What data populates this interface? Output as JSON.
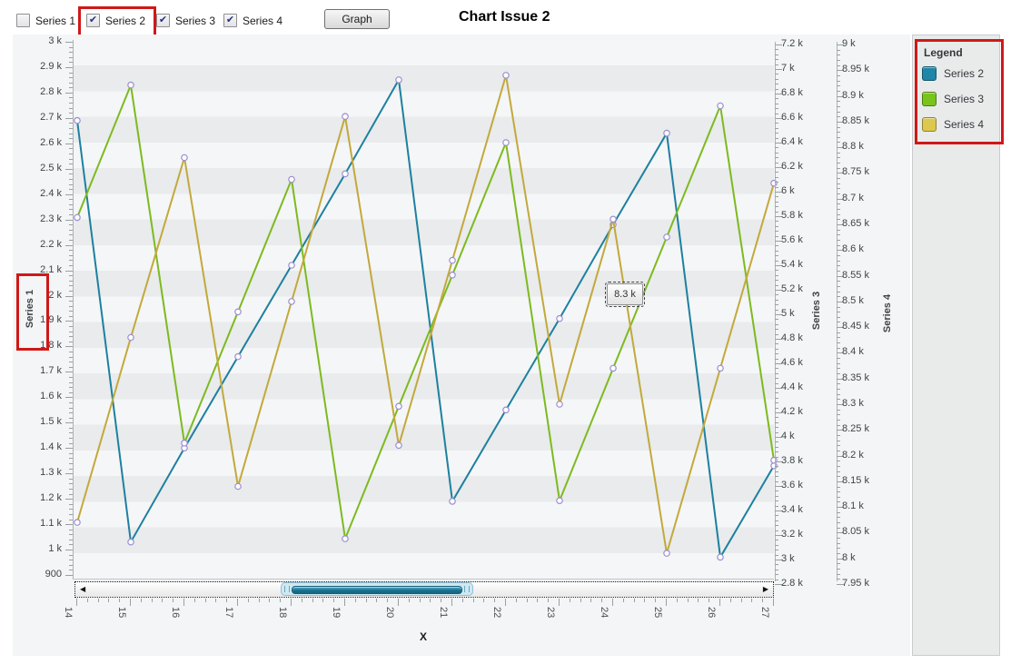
{
  "toolbar": {
    "series_toggles": [
      {
        "label": "Series 1",
        "checked": false,
        "highlighted": false
      },
      {
        "label": "Series 2",
        "checked": true,
        "highlighted": true
      },
      {
        "label": "Series 3",
        "checked": true,
        "highlighted": false
      },
      {
        "label": "Series 4",
        "checked": true,
        "highlighted": false
      }
    ],
    "graph_button": "Graph",
    "title": "Chart Issue 2"
  },
  "legend": {
    "title": "Legend",
    "highlighted": true,
    "items": [
      {
        "label": "Series 2",
        "color": "#1f86a8"
      },
      {
        "label": "Series 3",
        "color": "#79c41c"
      },
      {
        "label": "Series 4",
        "color": "#dcc84e"
      }
    ]
  },
  "tooltip": {
    "text": "8.3 k"
  },
  "scrollbar": {
    "visible_range_labels": [
      "18",
      "21"
    ]
  },
  "chart_data": {
    "type": "line",
    "x": [
      14,
      15,
      16,
      17,
      18,
      19,
      20,
      21,
      22,
      23,
      24,
      25,
      26,
      27
    ],
    "series": [
      {
        "name": "Series 2",
        "axis": "left",
        "color": "#1d80a0",
        "values_k": [
          2.69,
          1.03,
          1.4,
          1.76,
          2.12,
          2.48,
          2.85,
          1.19,
          1.55,
          1.91,
          2.28,
          2.64,
          0.97,
          1.33
        ]
      },
      {
        "name": "Series 3",
        "axis": "right1",
        "color": "#7dba1f",
        "values_k": [
          5.79,
          6.87,
          3.95,
          5.02,
          6.1,
          3.17,
          4.25,
          5.32,
          6.4,
          3.48,
          4.56,
          5.63,
          6.7,
          3.81
        ]
      },
      {
        "name": "Series 4",
        "axis": "right2",
        "color": "#c2a93c",
        "values_k": [
          8.07,
          8.43,
          8.78,
          8.14,
          8.5,
          8.86,
          8.22,
          8.58,
          8.94,
          8.3,
          8.66,
          8.01,
          8.37,
          8.73
        ]
      }
    ],
    "axes": {
      "left": {
        "title": "Series 1",
        "min_k": 0.9,
        "max_k": 3.0,
        "tick_labels": [
          "3 k",
          "2.9 k",
          "2.8 k",
          "2.7 k",
          "2.6 k",
          "2.5 k",
          "2.4 k",
          "2.3 k",
          "2.2 k",
          "2.1 k",
          "2 k",
          "1.9 k",
          "1.8 k",
          "1.7 k",
          "1.6 k",
          "1.5 k",
          "1.4 k",
          "1.3 k",
          "1.2 k",
          "1.1 k",
          "1 k",
          "900"
        ]
      },
      "right1": {
        "title": "Series 3",
        "min_k": 2.8,
        "max_k": 7.2,
        "tick_labels": [
          "7.2 k",
          "7 k",
          "6.8 k",
          "6.6 k",
          "6.4 k",
          "6.2 k",
          "6 k",
          "5.8 k",
          "5.6 k",
          "5.4 k",
          "5.2 k",
          "5 k",
          "4.8 k",
          "4.6 k",
          "4.4 k",
          "4.2 k",
          "4 k",
          "3.8 k",
          "3.6 k",
          "3.4 k",
          "3.2 k",
          "3 k",
          "2.8 k"
        ]
      },
      "right2": {
        "title": "Series 4",
        "min_k": 7.95,
        "max_k": 9.0,
        "tick_labels": [
          "9 k",
          "8.95 k",
          "8.9 k",
          "8.85 k",
          "8.8 k",
          "8.75 k",
          "8.7 k",
          "8.65 k",
          "8.6 k",
          "8.55 k",
          "8.5 k",
          "8.45 k",
          "8.4 k",
          "8.35 k",
          "8.3 k",
          "8.25 k",
          "8.2 k",
          "8.15 k",
          "8.1 k",
          "8.05 k",
          "8 k",
          "7.95 k"
        ]
      },
      "x": {
        "title": "X",
        "tick_labels": [
          "14",
          "15",
          "16",
          "17",
          "18",
          "19",
          "20",
          "21",
          "22",
          "23",
          "24",
          "25",
          "26",
          "27"
        ]
      }
    }
  }
}
